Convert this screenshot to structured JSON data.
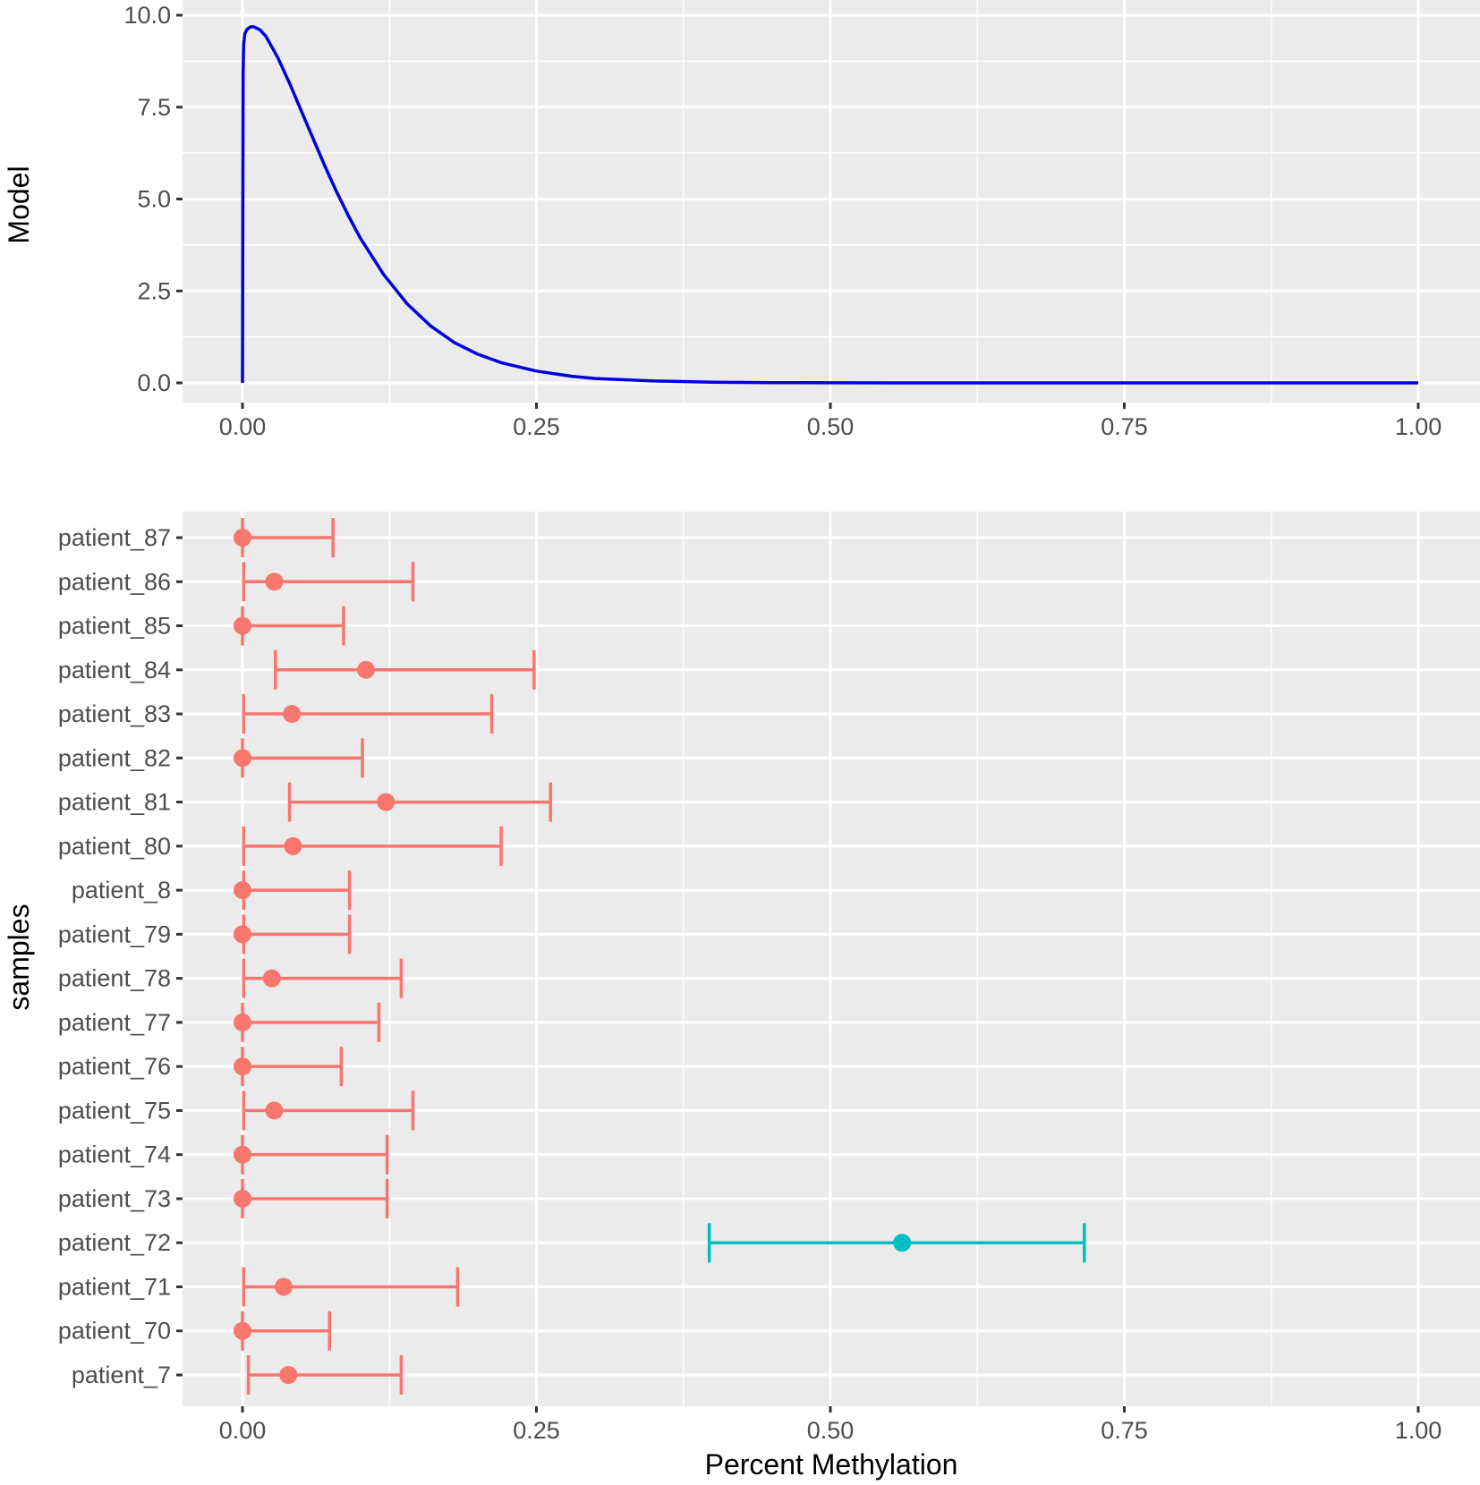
{
  "chart_data": [
    {
      "type": "line",
      "title": "",
      "xlabel": "",
      "ylabel": "Model",
      "xlim": [
        -0.05,
        1.05
      ],
      "ylim": [
        -0.5,
        10.1
      ],
      "grid": true,
      "x_ticks": [
        0,
        0.25,
        0.5,
        0.75,
        1
      ],
      "x_tick_labels": [
        "0.00",
        "0.25",
        "0.50",
        "0.75",
        "1.00"
      ],
      "y_ticks": [
        0,
        2.5,
        5,
        7.5,
        10
      ],
      "y_tick_labels": [
        "0.0",
        "2.5",
        "5.0",
        "7.5",
        "10.0"
      ],
      "series": [
        {
          "color": "#0000dd",
          "x": [
            0,
            0.0005,
            0.001,
            0.002,
            0.004,
            0.006,
            0.008,
            0.01,
            0.015,
            0.02,
            0.03,
            0.04,
            0.05,
            0.06,
            0.07,
            0.08,
            0.09,
            0.1,
            0.12,
            0.14,
            0.16,
            0.18,
            0.2,
            0.22,
            0.25,
            0.28,
            0.3,
            0.35,
            0.4,
            0.45,
            0.5,
            0.55,
            0.6,
            0.7,
            0.8,
            0.9,
            1.0
          ],
          "y": [
            0,
            8.4,
            9.2,
            9.5,
            9.62,
            9.67,
            9.69,
            9.68,
            9.6,
            9.42,
            8.85,
            8.15,
            7.4,
            6.65,
            5.9,
            5.2,
            4.55,
            3.95,
            2.95,
            2.15,
            1.55,
            1.1,
            0.78,
            0.55,
            0.32,
            0.18,
            0.12,
            0.05,
            0.02,
            0.008,
            0.003,
            0.001,
            0.0005,
            0.0001,
            0,
            0,
            0
          ]
        }
      ]
    },
    {
      "type": "scatter",
      "title": "",
      "xlabel": "Percent Methylation",
      "ylabel": "samples",
      "xlim": [
        -0.05,
        1.05
      ],
      "grid": true,
      "x_ticks": [
        0,
        0.25,
        0.5,
        0.75,
        1
      ],
      "x_tick_labels": [
        "0.00",
        "0.25",
        "0.50",
        "0.75",
        "1.00"
      ],
      "categories": [
        "patient_87",
        "patient_86",
        "patient_85",
        "patient_84",
        "patient_83",
        "patient_82",
        "patient_81",
        "patient_80",
        "patient_8",
        "patient_79",
        "patient_78",
        "patient_77",
        "patient_76",
        "patient_75",
        "patient_74",
        "patient_73",
        "patient_72",
        "patient_71",
        "patient_70",
        "patient_7"
      ],
      "estimate": [
        0.0,
        0.027,
        0.0,
        0.105,
        0.042,
        0.0,
        0.122,
        0.043,
        0.0,
        0.0,
        0.025,
        0.0,
        0.0,
        0.027,
        0.0,
        0.0,
        0.561,
        0.035,
        0.0,
        0.039
      ],
      "lower": [
        0.0,
        0.001,
        0.0,
        0.028,
        0.001,
        0.0,
        0.04,
        0.001,
        0.001,
        0.001,
        0.001,
        0.0,
        0.0,
        0.001,
        0.0,
        0.0,
        0.397,
        0.001,
        0.0,
        0.005
      ],
      "upper": [
        0.077,
        0.145,
        0.086,
        0.248,
        0.212,
        0.102,
        0.262,
        0.22,
        0.091,
        0.091,
        0.135,
        0.116,
        0.084,
        0.145,
        0.123,
        0.123,
        0.716,
        0.183,
        0.074,
        0.135
      ],
      "group_color": [
        "#f8766d",
        "#f8766d",
        "#f8766d",
        "#f8766d",
        "#f8766d",
        "#f8766d",
        "#f8766d",
        "#f8766d",
        "#f8766d",
        "#f8766d",
        "#f8766d",
        "#f8766d",
        "#f8766d",
        "#f8766d",
        "#f8766d",
        "#f8766d",
        "#00bfc4",
        "#f8766d",
        "#f8766d",
        "#f8766d"
      ]
    }
  ]
}
